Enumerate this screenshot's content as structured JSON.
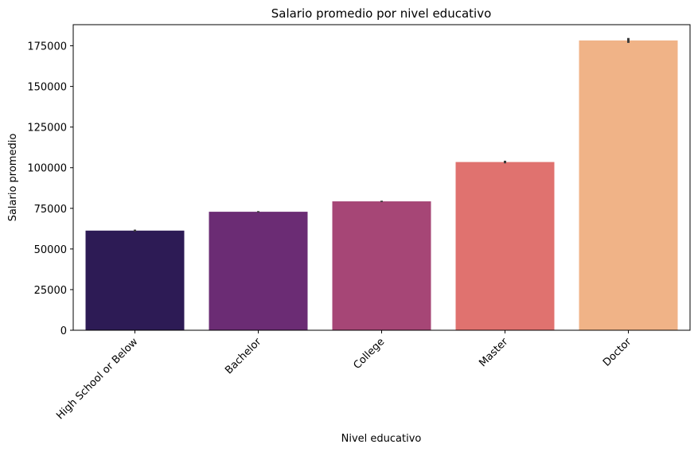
{
  "chart_data": {
    "type": "bar",
    "title": "Salario promedio por nivel educativo",
    "xlabel": "Nivel educativo",
    "ylabel": "Salario promedio",
    "categories": [
      "High School or Below",
      "Bachelor",
      "College",
      "Master",
      "Doctor"
    ],
    "values": [
      61300,
      72900,
      79300,
      103500,
      178300
    ],
    "error_bars": [
      [
        60700,
        61900
      ],
      [
        72500,
        73300
      ],
      [
        78900,
        79700
      ],
      [
        102700,
        104300
      ],
      [
        176800,
        179800
      ]
    ],
    "colors": [
      "#2d1b55",
      "#6b2c74",
      "#a64676",
      "#e0726f",
      "#f0b387"
    ],
    "errorbar_color": "#3b3b3b",
    "ylim": [
      0,
      188000
    ],
    "yticks": [
      0,
      25000,
      50000,
      75000,
      100000,
      125000,
      150000,
      175000
    ],
    "ytick_labels": [
      "0",
      "25000",
      "50000",
      "75000",
      "100000",
      "125000",
      "150000",
      "175000"
    ],
    "grid": false,
    "x_tick_rotation_deg": 45
  }
}
